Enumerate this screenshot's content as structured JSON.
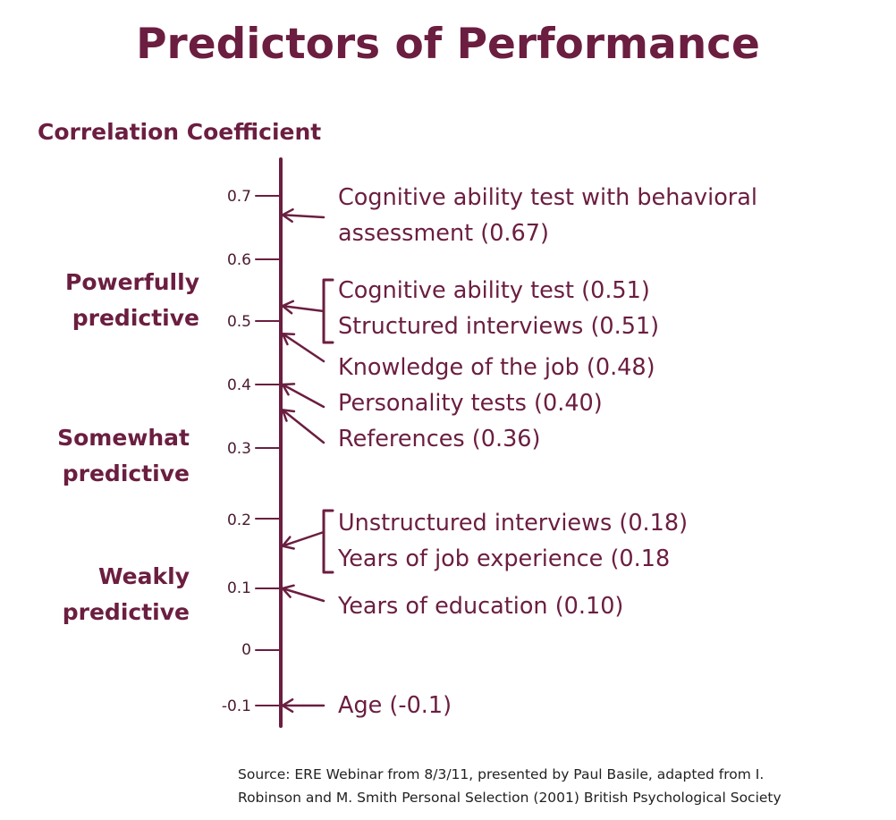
{
  "title": "Predictors of Performance",
  "axis_label": "Correlation Coefficient",
  "colors": {
    "primary": "#6b1e40",
    "text": "#222222"
  },
  "bands": [
    {
      "line1": "Powerfully",
      "line2": "predictive"
    },
    {
      "line1": "Somewhat",
      "line2": "predictive"
    },
    {
      "line1": "Weakly",
      "line2": "predictive"
    }
  ],
  "ticks": [
    "0.7",
    "0.6",
    "0.5",
    "0.4",
    "0.3",
    "0.2",
    "0.1",
    "0",
    "-0.1"
  ],
  "tick_values": [
    0.7,
    0.6,
    0.5,
    0.4,
    0.3,
    0.2,
    0.1,
    0,
    -0.1
  ],
  "items": [
    {
      "text": "Cognitive ability test with behavioral",
      "value": 0.67
    },
    {
      "text": "assessment (0.67)",
      "value": 0.67
    },
    {
      "text": "Cognitive ability test (0.51)",
      "value": 0.51
    },
    {
      "text": "Structured interviews (0.51)",
      "value": 0.51
    },
    {
      "text": "Knowledge of the job (0.48)",
      "value": 0.48
    },
    {
      "text": "Personality tests (0.40)",
      "value": 0.4
    },
    {
      "text": "References (0.36)",
      "value": 0.36
    },
    {
      "text": "Unstructured interviews (0.18)",
      "value": 0.18
    },
    {
      "text": "Years of job experience (0.18",
      "value": 0.18
    },
    {
      "text": "Years of education (0.10)",
      "value": 0.1
    },
    {
      "text": "Age (-0.1)",
      "value": -0.1
    }
  ],
  "source": {
    "line1": "Source: ERE Webinar from 8/3/11, presented by Paul Basile, adapted from I.",
    "line2": "Robinson and M. Smith Personal Selection (2001) British Psychological Society"
  }
}
